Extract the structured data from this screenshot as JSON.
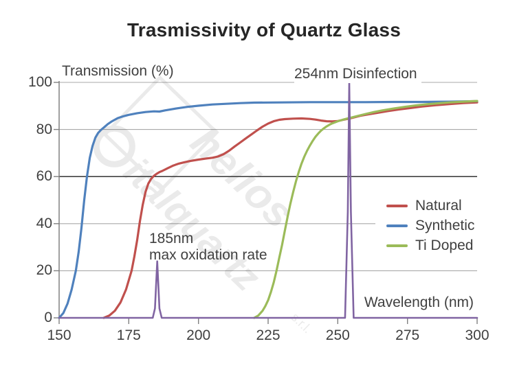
{
  "title": "Trasmissivity of Quartz Glass",
  "watermark": {
    "line1": "helios",
    "line2": "italquartz",
    "suffix": "s.r.l."
  },
  "colors": {
    "natural": "#C0504D",
    "synthetic": "#4F81BD",
    "ti_doped": "#9BBB59",
    "uv_peaks": "#8064A2",
    "grid": "#A8A8A8",
    "grid_emphasis": "#1f1f1f",
    "axis": "#808080",
    "text": "#404040",
    "title_text": "#262626"
  },
  "chart_data": {
    "type": "line",
    "title": "Trasmissivity of Quartz Glass",
    "xlabel": "Wavelength (nm)",
    "ylabel": "Transmission  (%)",
    "xlim": [
      150,
      300
    ],
    "ylim": [
      0,
      100
    ],
    "x_ticks": [
      150,
      175,
      200,
      225,
      250,
      275,
      300
    ],
    "y_ticks": [
      0,
      20,
      40,
      60,
      80,
      100
    ],
    "grid": "horizontal",
    "emphasized_gridline": 60,
    "legend_position": "right-middle",
    "annotations": [
      {
        "lines": [
          "254nm Disinfection"
        ],
        "x": 254,
        "y": 100
      },
      {
        "lines": [
          "185nm",
          "max oxidation rate"
        ],
        "x": 185,
        "y": 30
      }
    ],
    "series": [
      {
        "name": "Natural",
        "color": "#C0504D",
        "in_legend": true,
        "points": [
          [
            166,
            0
          ],
          [
            168,
            1
          ],
          [
            170,
            3
          ],
          [
            172,
            6.5
          ],
          [
            174,
            12
          ],
          [
            176,
            20
          ],
          [
            177,
            26
          ],
          [
            178,
            33
          ],
          [
            179,
            41
          ],
          [
            180,
            48
          ],
          [
            181,
            53.5
          ],
          [
            182,
            57
          ],
          [
            183,
            59
          ],
          [
            184,
            60.3
          ],
          [
            185,
            61.2
          ],
          [
            186,
            61.9
          ],
          [
            187,
            62.4
          ],
          [
            189,
            63.6
          ],
          [
            191,
            64.7
          ],
          [
            193,
            65.5
          ],
          [
            195,
            66.1
          ],
          [
            197,
            66.6
          ],
          [
            200,
            67.2
          ],
          [
            203,
            67.7
          ],
          [
            205,
            68
          ],
          [
            207,
            68.5
          ],
          [
            209,
            69.5
          ],
          [
            211,
            71
          ],
          [
            213,
            72.8
          ],
          [
            215,
            74.5
          ],
          [
            217,
            76.2
          ],
          [
            219,
            77.9
          ],
          [
            221,
            79.6
          ],
          [
            223,
            81.2
          ],
          [
            225,
            82.5
          ],
          [
            227,
            83.5
          ],
          [
            229,
            84.1
          ],
          [
            231,
            84.4
          ],
          [
            234,
            84.6
          ],
          [
            237,
            84.7
          ],
          [
            240,
            84.5
          ],
          [
            242,
            84.2
          ],
          [
            244,
            83.8
          ],
          [
            246,
            83.5
          ],
          [
            248,
            83.4
          ],
          [
            250,
            83.6
          ],
          [
            252,
            84.1
          ],
          [
            254,
            84.6
          ],
          [
            256,
            85.2
          ],
          [
            258,
            85.8
          ],
          [
            261,
            86.4
          ],
          [
            264,
            87
          ],
          [
            268,
            87.8
          ],
          [
            272,
            88.5
          ],
          [
            276,
            89.1
          ],
          [
            280,
            89.7
          ],
          [
            285,
            90.3
          ],
          [
            290,
            90.8
          ],
          [
            295,
            91.2
          ],
          [
            300,
            91.5
          ]
        ]
      },
      {
        "name": "Synthetic",
        "color": "#4F81BD",
        "in_legend": true,
        "points": [
          [
            150,
            0
          ],
          [
            151.5,
            2
          ],
          [
            153,
            6
          ],
          [
            154.5,
            12
          ],
          [
            156,
            20
          ],
          [
            157,
            28
          ],
          [
            158,
            38
          ],
          [
            159,
            50
          ],
          [
            160,
            60
          ],
          [
            161,
            68
          ],
          [
            162,
            73
          ],
          [
            163,
            76.5
          ],
          [
            164,
            78.5
          ],
          [
            165,
            79.8
          ],
          [
            166,
            80.8
          ],
          [
            167.5,
            82.3
          ],
          [
            169,
            83.5
          ],
          [
            171,
            84.8
          ],
          [
            173,
            85.6
          ],
          [
            175,
            86.2
          ],
          [
            178,
            86.9
          ],
          [
            181,
            87.4
          ],
          [
            184,
            87.7
          ],
          [
            186,
            87.6
          ],
          [
            188,
            88.1
          ],
          [
            190,
            88.5
          ],
          [
            193,
            89.1
          ],
          [
            196,
            89.6
          ],
          [
            200,
            90.1
          ],
          [
            205,
            90.6
          ],
          [
            210,
            90.9
          ],
          [
            215,
            91.2
          ],
          [
            220,
            91.4
          ],
          [
            230,
            91.5
          ],
          [
            240,
            91.6
          ],
          [
            250,
            91.6
          ],
          [
            260,
            91.6
          ],
          [
            270,
            91.7
          ],
          [
            280,
            91.7
          ],
          [
            290,
            91.8
          ],
          [
            300,
            92
          ]
        ]
      },
      {
        "name": "Ti Doped",
        "color": "#9BBB59",
        "in_legend": true,
        "points": [
          [
            220,
            0
          ],
          [
            221.5,
            1
          ],
          [
            223,
            3
          ],
          [
            224,
            5
          ],
          [
            225,
            7.5
          ],
          [
            226,
            11
          ],
          [
            227,
            15
          ],
          [
            228,
            20
          ],
          [
            229,
            25.5
          ],
          [
            230,
            31
          ],
          [
            231,
            37
          ],
          [
            232,
            43
          ],
          [
            233,
            48.5
          ],
          [
            234,
            53.5
          ],
          [
            235,
            58
          ],
          [
            236,
            62
          ],
          [
            237,
            65.5
          ],
          [
            238,
            68.5
          ],
          [
            239,
            71
          ],
          [
            240,
            73.2
          ],
          [
            241,
            75.2
          ],
          [
            242,
            76.9
          ],
          [
            243,
            78.3
          ],
          [
            244,
            79.5
          ],
          [
            245,
            80.5
          ],
          [
            246,
            81.3
          ],
          [
            247,
            82
          ],
          [
            248,
            82.6
          ],
          [
            250,
            83.5
          ],
          [
            252,
            84.2
          ],
          [
            254,
            84.8
          ],
          [
            256,
            85.4
          ],
          [
            258,
            86
          ],
          [
            260,
            86.6
          ],
          [
            263,
            87.4
          ],
          [
            266,
            88.1
          ],
          [
            270,
            88.9
          ],
          [
            274,
            89.6
          ],
          [
            278,
            90.2
          ],
          [
            282,
            90.7
          ],
          [
            286,
            91.1
          ],
          [
            290,
            91.5
          ],
          [
            295,
            91.8
          ],
          [
            300,
            92.1
          ]
        ]
      },
      {
        "name": "",
        "color": "#8064A2",
        "in_legend": false,
        "points": [
          [
            150,
            0
          ],
          [
            183.6,
            0
          ],
          [
            184.4,
            4
          ],
          [
            185.2,
            24
          ],
          [
            186,
            4
          ],
          [
            186.8,
            0
          ],
          [
            252.6,
            0
          ],
          [
            253.6,
            45
          ],
          [
            254.1,
            100
          ],
          [
            254.7,
            45
          ],
          [
            255.7,
            0
          ],
          [
            300,
            0
          ]
        ]
      }
    ]
  }
}
